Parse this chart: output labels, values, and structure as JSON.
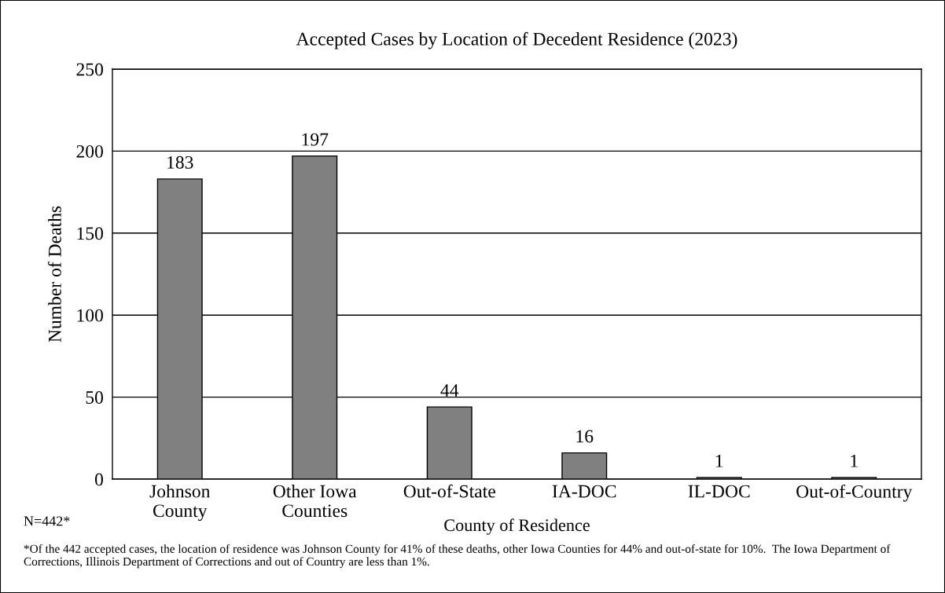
{
  "chart_data": {
    "type": "bar",
    "title": "Accepted Cases by Location of Decedent Residence (2023)",
    "xlabel": "County of Residence",
    "ylabel": "Number of Deaths",
    "categories": [
      "Johnson\nCounty",
      "Other Iowa\nCounties",
      "Out-of-State",
      "IA-DOC",
      "IL-DOC",
      "Out-of-Country"
    ],
    "values": [
      183,
      197,
      44,
      16,
      1,
      1
    ],
    "color": "#808080",
    "ylim": [
      0,
      250
    ],
    "yticks": [
      0,
      50,
      100,
      150,
      200,
      250
    ],
    "grid": "y",
    "data_labels": true,
    "annotations": [
      "N=442*",
      "*Of the 442 accepted cases, the location of residence was Johnson County for 41% of these deaths, other Iowa Counties for 44% and out-of-state for 10%.  The Iowa Department of Corrections, Illinois Department of Corrections and out of Country are less than 1%."
    ]
  }
}
